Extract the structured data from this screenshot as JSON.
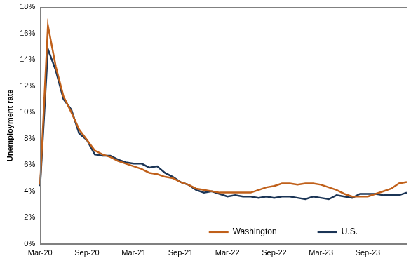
{
  "chart_data": {
    "type": "line",
    "y_label": "Unemployment rate",
    "categories": [
      "Mar-20",
      null,
      null,
      null,
      null,
      null,
      "Sep-20",
      null,
      null,
      null,
      null,
      null,
      "Mar-21",
      null,
      null,
      null,
      null,
      null,
      "Sep-21",
      null,
      null,
      null,
      null,
      null,
      "Mar-22",
      null,
      null,
      null,
      null,
      null,
      "Sep-22",
      null,
      null,
      null,
      null,
      null,
      "Mar-23",
      null,
      null,
      null,
      null,
      null,
      "Sep-23",
      null,
      null,
      null,
      null,
      null
    ],
    "series": [
      {
        "name": "Washington",
        "color": "#c0601a",
        "values": [
          4.5,
          16.6,
          13.5,
          11.2,
          10.0,
          8.7,
          7.9,
          7.1,
          6.8,
          6.6,
          6.3,
          6.1,
          5.9,
          5.7,
          5.4,
          5.3,
          5.1,
          5.0,
          4.7,
          4.5,
          4.2,
          4.1,
          4.0,
          3.9,
          3.9,
          3.9,
          3.9,
          3.9,
          4.1,
          4.3,
          4.4,
          4.6,
          4.6,
          4.5,
          4.6,
          4.6,
          4.5,
          4.3,
          4.1,
          3.8,
          3.6,
          3.6,
          3.6,
          3.8,
          4.0,
          4.2,
          4.6,
          4.7
        ]
      },
      {
        "name": "U.S.",
        "color": "#1b3556",
        "values": [
          4.4,
          14.8,
          13.2,
          11.0,
          10.2,
          8.4,
          7.9,
          6.8,
          6.7,
          6.7,
          6.4,
          6.2,
          6.1,
          6.1,
          5.8,
          5.9,
          5.4,
          5.1,
          4.7,
          4.5,
          4.1,
          3.9,
          4.0,
          3.8,
          3.6,
          3.7,
          3.6,
          3.6,
          3.5,
          3.6,
          3.5,
          3.6,
          3.6,
          3.5,
          3.4,
          3.6,
          3.5,
          3.4,
          3.7,
          3.6,
          3.5,
          3.8,
          3.8,
          3.8,
          3.7,
          3.7,
          3.7,
          3.9
        ]
      }
    ],
    "ylim": [
      0,
      18
    ],
    "yticks": [
      {
        "value": 0,
        "label": "0%"
      },
      {
        "value": 2,
        "label": "2%"
      },
      {
        "value": 4,
        "label": "4%"
      },
      {
        "value": 6,
        "label": "6%"
      },
      {
        "value": 8,
        "label": "8%"
      },
      {
        "value": 10,
        "label": "10%"
      },
      {
        "value": 12,
        "label": "12%"
      },
      {
        "value": 14,
        "label": "14%"
      },
      {
        "value": 16,
        "label": "16%"
      },
      {
        "value": 18,
        "label": "18%"
      }
    ],
    "grid": false,
    "legend": "lower right"
  }
}
